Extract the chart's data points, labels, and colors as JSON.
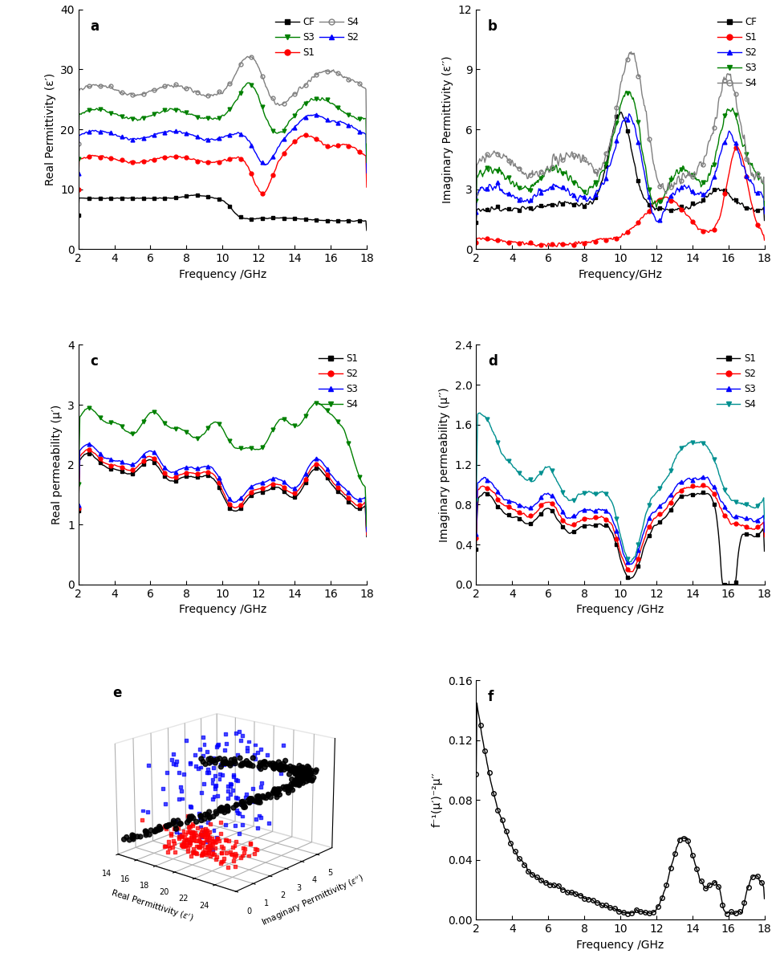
{
  "freq_range": [
    2,
    18
  ],
  "panel_a": {
    "title": "a",
    "ylabel": "Real Permittivity (ε′)",
    "xlabel": "Frequency /GHz",
    "ylim": [
      0,
      40
    ],
    "yticks": [
      0,
      10,
      20,
      30,
      40
    ]
  },
  "panel_b": {
    "title": "b",
    "ylabel": "Imaginary Permittivity (ε′′)",
    "xlabel": "Frequency/GHz",
    "ylim": [
      0,
      12
    ],
    "yticks": [
      0,
      3,
      6,
      9,
      12
    ]
  },
  "panel_c": {
    "title": "c",
    "ylabel": "Real permeability (μ′)",
    "xlabel": "Frequency /GHz",
    "ylim": [
      0,
      4
    ],
    "yticks": [
      0,
      1,
      2,
      3,
      4
    ]
  },
  "panel_d": {
    "title": "d",
    "ylabel": "Imaginary permeability (μ′′)",
    "xlabel": "Frequency /GHz",
    "ylim": [
      0,
      2.4
    ],
    "yticks": [
      0.0,
      0.4,
      0.8,
      1.2,
      1.6,
      2.0,
      2.4
    ]
  },
  "panel_f": {
    "title": "f",
    "ylabel": "f⁻¹(μ′)⁻²μ′′",
    "xlabel": "Frequency /GHz",
    "ylim": [
      0,
      0.16
    ],
    "yticks": [
      0.0,
      0.04,
      0.08,
      0.12,
      0.16
    ]
  },
  "colors": {
    "CF": "#000000",
    "S1": "#ff0000",
    "S2": "#0000ff",
    "S3": "#008000",
    "S4": "#808080"
  }
}
